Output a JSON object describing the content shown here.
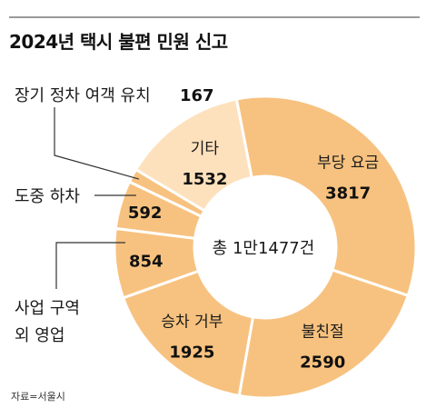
{
  "title": "2024년 택시 불편 민원 신고",
  "source": "자료=서울시",
  "colors": {
    "slice_main": "#f7c27f",
    "slice_light": "#fde1bd",
    "slice_stroke": "#ffffff",
    "leader": "#333333",
    "rule": "#9a9a9a"
  },
  "chart_data": {
    "type": "pie",
    "center_label": "총 1만1477건",
    "categories": [
      "부당 요금",
      "불친절",
      "승차 거부",
      "사업 구역 외 영업",
      "도중 하차",
      "장기 정차 여객 유치",
      "기타"
    ],
    "values": [
      3817,
      2590,
      1925,
      854,
      592,
      167,
      1532
    ],
    "label_lines": [
      [
        "부당 요금"
      ],
      [
        "불친절"
      ],
      [
        "승차 거부"
      ],
      [
        "사업 구역",
        "외 영업"
      ],
      [
        "도중 하차"
      ],
      [
        "장기 정차 여객 유치"
      ],
      [
        "기타"
      ]
    ],
    "value_labels": [
      "3817",
      "2590",
      "1925",
      "854",
      "592",
      "167",
      "1532"
    ],
    "colors": [
      "#f7c27f",
      "#f7c27f",
      "#f7c27f",
      "#f7c27f",
      "#f7c27f",
      "#f7c27f",
      "#fde1bd"
    ],
    "label_position": [
      "inside",
      "inside",
      "inside",
      "outside",
      "outside",
      "outside",
      "inside"
    ],
    "legend": "none"
  }
}
